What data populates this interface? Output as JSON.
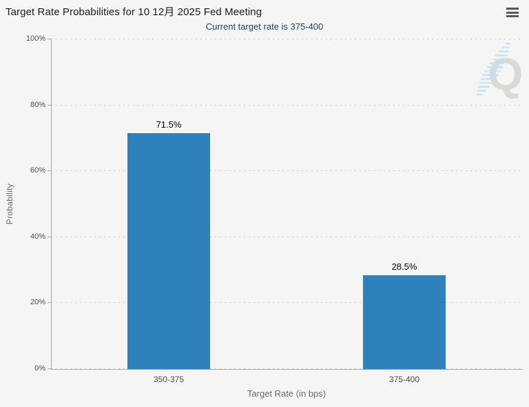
{
  "header": {
    "title": "Target Rate Probabilities for 10 12月 2025 Fed Meeting",
    "menu_icon": "hamburger-menu-icon"
  },
  "chart_data": {
    "type": "bar",
    "title": "Target Rate Probabilities for 10 12月 2025 Fed Meeting",
    "subtitle": "Current target rate is 375-400",
    "xlabel": "Target Rate (in bps)",
    "ylabel": "Probability",
    "categories": [
      "350-375",
      "375-400"
    ],
    "values": [
      71.5,
      28.5
    ],
    "value_labels": [
      "71.5%",
      "28.5%"
    ],
    "yticks": [
      "0%",
      "20%",
      "40%",
      "60%",
      "80%",
      "100%"
    ],
    "ytick_values": [
      0,
      20,
      40,
      60,
      80,
      100
    ],
    "ylim": [
      0,
      100
    ],
    "grid": "horizontal-dotted",
    "legend": "none",
    "bar_color": "#2e81ba"
  },
  "watermark": {
    "letter": "Q"
  },
  "colors": {
    "background": "#f5f5f3",
    "bar": "#2e81ba",
    "title_text": "#1a1a1a",
    "subtitle_text": "#1f3f66",
    "axis_line": "#a6a6a3",
    "gridline": "#cbcbc9",
    "tick_label": "#4d4d4d",
    "axis_title": "#66696e",
    "value_label": "#000000",
    "menu_icon": "#58585a",
    "watermark_letter": "#d9d9d6",
    "watermark_swoosh": "#bfe4f6"
  }
}
